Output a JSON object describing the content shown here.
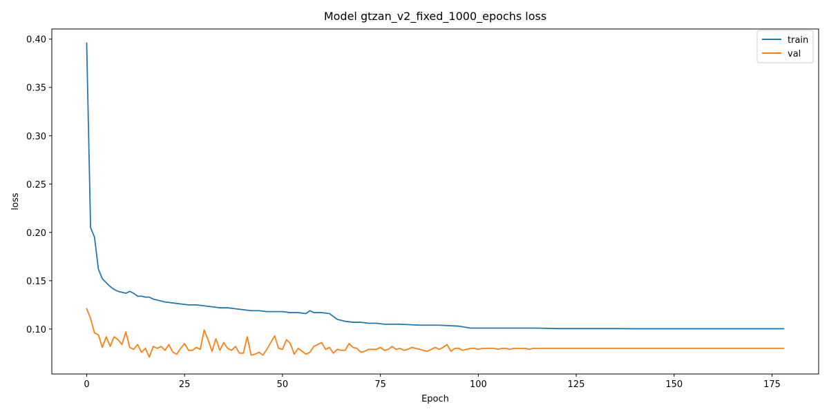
{
  "chart_data": {
    "type": "line",
    "title": "Model gtzan_v2_fixed_1000_epochs loss",
    "xlabel": "Epoch",
    "ylabel": "loss",
    "xlim": [
      -8.9,
      186.9
    ],
    "ylim": [
      0.0535,
      0.4105
    ],
    "xticks": [
      0,
      25,
      50,
      75,
      100,
      125,
      150,
      175
    ],
    "yticks": [
      0.1,
      0.15,
      0.2,
      0.25,
      0.3,
      0.35,
      0.4
    ],
    "ytick_labels": [
      "0.10",
      "0.15",
      "0.20",
      "0.25",
      "0.30",
      "0.35",
      "0.40"
    ],
    "grid": false,
    "legend_position": "top-right",
    "series": [
      {
        "name": "train",
        "color": "#1f77b4",
        "x": [
          0,
          1,
          2,
          3,
          4,
          5,
          6,
          7,
          8,
          9,
          10,
          11,
          12,
          13,
          14,
          15,
          16,
          17,
          18,
          19,
          20,
          22,
          24,
          26,
          28,
          30,
          32,
          34,
          35,
          36,
          38,
          40,
          42,
          44,
          46,
          48,
          50,
          52,
          54,
          56,
          57,
          58,
          60,
          62,
          64,
          66,
          68,
          70,
          72,
          74,
          76,
          78,
          80,
          85,
          90,
          95,
          98,
          100,
          105,
          110,
          115,
          120,
          125,
          130,
          135,
          140,
          145,
          150,
          155,
          160,
          165,
          170,
          175,
          178
        ],
        "values": [
          0.396,
          0.205,
          0.195,
          0.162,
          0.152,
          0.148,
          0.144,
          0.141,
          0.139,
          0.138,
          0.137,
          0.139,
          0.137,
          0.134,
          0.134,
          0.133,
          0.133,
          0.131,
          0.13,
          0.129,
          0.128,
          0.127,
          0.126,
          0.125,
          0.125,
          0.124,
          0.123,
          0.122,
          0.122,
          0.122,
          0.121,
          0.12,
          0.119,
          0.119,
          0.118,
          0.118,
          0.118,
          0.117,
          0.117,
          0.116,
          0.119,
          0.117,
          0.117,
          0.116,
          0.11,
          0.108,
          0.107,
          0.107,
          0.106,
          0.106,
          0.105,
          0.105,
          0.105,
          0.104,
          0.104,
          0.103,
          0.101,
          0.101,
          0.101,
          0.101,
          0.101,
          0.1005,
          0.1005,
          0.1005,
          0.1005,
          0.1003,
          0.1003,
          0.1003,
          0.1003,
          0.1003,
          0.1003,
          0.1003,
          0.1003,
          0.1003
        ]
      },
      {
        "name": "val",
        "color": "#ff7f0e",
        "x": [
          0,
          1,
          2,
          3,
          4,
          5,
          6,
          7,
          8,
          9,
          10,
          11,
          12,
          13,
          14,
          15,
          16,
          17,
          18,
          19,
          20,
          21,
          22,
          23,
          24,
          25,
          26,
          27,
          28,
          29,
          30,
          31,
          32,
          33,
          34,
          35,
          36,
          37,
          38,
          39,
          40,
          41,
          42,
          43,
          44,
          45,
          46,
          47,
          48,
          49,
          50,
          51,
          52,
          53,
          54,
          55,
          56,
          57,
          58,
          59,
          60,
          61,
          62,
          63,
          64,
          65,
          66,
          67,
          68,
          69,
          70,
          71,
          72,
          73,
          74,
          75,
          76,
          77,
          78,
          79,
          80,
          81,
          82,
          83,
          84,
          85,
          86,
          87,
          88,
          89,
          90,
          91,
          92,
          93,
          94,
          95,
          96,
          97,
          98,
          99,
          100,
          101,
          102,
          103,
          104,
          105,
          106,
          107,
          108,
          109,
          110,
          111,
          112,
          113,
          114,
          115,
          116,
          117,
          118,
          119,
          120,
          125,
          130,
          140,
          150,
          160,
          170,
          178
        ],
        "values": [
          0.121,
          0.111,
          0.096,
          0.094,
          0.081,
          0.092,
          0.082,
          0.092,
          0.089,
          0.084,
          0.097,
          0.081,
          0.079,
          0.084,
          0.076,
          0.08,
          0.071,
          0.082,
          0.08,
          0.082,
          0.078,
          0.084,
          0.076,
          0.074,
          0.08,
          0.085,
          0.078,
          0.078,
          0.081,
          0.079,
          0.099,
          0.089,
          0.077,
          0.09,
          0.078,
          0.086,
          0.08,
          0.078,
          0.082,
          0.075,
          0.075,
          0.092,
          0.073,
          0.074,
          0.076,
          0.073,
          0.079,
          0.086,
          0.093,
          0.08,
          0.079,
          0.089,
          0.085,
          0.074,
          0.08,
          0.077,
          0.074,
          0.076,
          0.082,
          0.084,
          0.086,
          0.079,
          0.081,
          0.075,
          0.079,
          0.078,
          0.078,
          0.085,
          0.081,
          0.08,
          0.076,
          0.077,
          0.079,
          0.079,
          0.079,
          0.081,
          0.078,
          0.079,
          0.082,
          0.079,
          0.08,
          0.078,
          0.079,
          0.081,
          0.08,
          0.079,
          0.078,
          0.077,
          0.079,
          0.081,
          0.079,
          0.081,
          0.084,
          0.077,
          0.08,
          0.08,
          0.078,
          0.079,
          0.08,
          0.08,
          0.079,
          0.08,
          0.08,
          0.08,
          0.08,
          0.079,
          0.08,
          0.08,
          0.079,
          0.08,
          0.08,
          0.08,
          0.08,
          0.079,
          0.08,
          0.08,
          0.08,
          0.08,
          0.08,
          0.08,
          0.08,
          0.08,
          0.08,
          0.08,
          0.08,
          0.08,
          0.08,
          0.08
        ]
      }
    ]
  }
}
